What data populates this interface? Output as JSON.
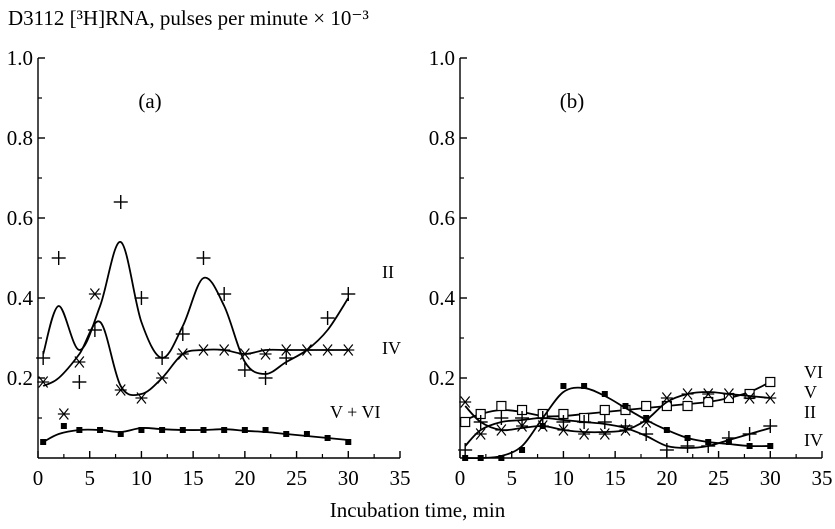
{
  "figure": {
    "ylabel": "D3112 [³H]RNA, pulses per minute × 10⁻³",
    "xlabel": "Incubation time, min"
  },
  "chart_data": [
    {
      "type": "line",
      "panel_label": "(a)",
      "xlim": [
        0,
        35
      ],
      "ylim": [
        0,
        1.0
      ],
      "xticks": [
        "0",
        "5",
        "10",
        "15",
        "20",
        "25",
        "30",
        "35"
      ],
      "yticks": [
        "0.2",
        "0.4",
        "0.6",
        "0.8",
        "1.0"
      ],
      "xlabel": "Incubation time, min",
      "ylabel": "D3112 [³H]RNA, pulses per minute × 10⁻³",
      "series": [
        {
          "name": "II",
          "marker": "plus",
          "points": [
            [
              0.5,
              0.25
            ],
            [
              2,
              0.5
            ],
            [
              4,
              0.19
            ],
            [
              5.5,
              0.32
            ],
            [
              8,
              0.64
            ],
            [
              10,
              0.4
            ],
            [
              12,
              0.25
            ],
            [
              14,
              0.31
            ],
            [
              16,
              0.5
            ],
            [
              18,
              0.41
            ],
            [
              20,
              0.22
            ],
            [
              22,
              0.2
            ],
            [
              24,
              0.25
            ],
            [
              28,
              0.35
            ],
            [
              30,
              0.41
            ]
          ],
          "curve": [
            [
              0.5,
              0.26
            ],
            [
              2,
              0.38
            ],
            [
              4,
              0.27
            ],
            [
              6,
              0.38
            ],
            [
              8,
              0.54
            ],
            [
              10,
              0.34
            ],
            [
              12,
              0.25
            ],
            [
              14,
              0.33
            ],
            [
              16,
              0.45
            ],
            [
              18,
              0.38
            ],
            [
              20,
              0.24
            ],
            [
              22,
              0.21
            ],
            [
              24,
              0.24
            ],
            [
              26,
              0.27
            ],
            [
              28,
              0.32
            ],
            [
              30,
              0.4
            ]
          ]
        },
        {
          "name": "IV",
          "marker": "asterisk",
          "points": [
            [
              0.5,
              0.19
            ],
            [
              2.5,
              0.11
            ],
            [
              4,
              0.24
            ],
            [
              5.5,
              0.41
            ],
            [
              8,
              0.17
            ],
            [
              10,
              0.15
            ],
            [
              12,
              0.2
            ],
            [
              14,
              0.26
            ],
            [
              16,
              0.27
            ],
            [
              18,
              0.27
            ],
            [
              20,
              0.26
            ],
            [
              22,
              0.26
            ],
            [
              24,
              0.27
            ],
            [
              26,
              0.27
            ],
            [
              28,
              0.27
            ],
            [
              30,
              0.27
            ]
          ],
          "curve": [
            [
              0.5,
              0.18
            ],
            [
              2,
              0.2
            ],
            [
              4,
              0.26
            ],
            [
              6,
              0.34
            ],
            [
              8,
              0.18
            ],
            [
              10,
              0.16
            ],
            [
              12,
              0.2
            ],
            [
              14,
              0.26
            ],
            [
              16,
              0.27
            ],
            [
              18,
              0.27
            ],
            [
              20,
              0.26
            ],
            [
              22,
              0.27
            ],
            [
              24,
              0.27
            ],
            [
              26,
              0.27
            ],
            [
              28,
              0.27
            ],
            [
              30,
              0.27
            ]
          ]
        },
        {
          "name": "V + VI",
          "marker": "square-filled",
          "points": [
            [
              0.5,
              0.04
            ],
            [
              2.5,
              0.08
            ],
            [
              4,
              0.07
            ],
            [
              6,
              0.07
            ],
            [
              8,
              0.06
            ],
            [
              10,
              0.07
            ],
            [
              12,
              0.07
            ],
            [
              14,
              0.07
            ],
            [
              16,
              0.07
            ],
            [
              18,
              0.07
            ],
            [
              20,
              0.07
            ],
            [
              22,
              0.07
            ],
            [
              24,
              0.06
            ],
            [
              26,
              0.06
            ],
            [
              28,
              0.05
            ],
            [
              30,
              0.04
            ]
          ],
          "curve": [
            [
              0.5,
              0.04
            ],
            [
              2,
              0.06
            ],
            [
              4,
              0.07
            ],
            [
              6,
              0.07
            ],
            [
              8,
              0.065
            ],
            [
              10,
              0.075
            ],
            [
              12,
              0.072
            ],
            [
              14,
              0.07
            ],
            [
              16,
              0.07
            ],
            [
              18,
              0.072
            ],
            [
              20,
              0.068
            ],
            [
              22,
              0.065
            ],
            [
              24,
              0.06
            ],
            [
              26,
              0.055
            ],
            [
              28,
              0.05
            ],
            [
              30,
              0.045
            ]
          ]
        }
      ]
    },
    {
      "type": "line",
      "panel_label": "(b)",
      "xlim": [
        0,
        35
      ],
      "ylim": [
        0,
        1.0
      ],
      "xticks": [
        "0",
        "5",
        "10",
        "15",
        "20",
        "25",
        "30",
        "35"
      ],
      "yticks": [
        "0.2",
        "0.4",
        "0.6",
        "0.8",
        "1.0"
      ],
      "xlabel": "Incubation time, min",
      "ylabel": "D3112 [³H]RNA, pulses per minute × 10⁻³",
      "series": [
        {
          "name": "VI",
          "marker": "square-open",
          "points": [
            [
              0.5,
              0.09
            ],
            [
              2,
              0.11
            ],
            [
              4,
              0.13
            ],
            [
              6,
              0.12
            ],
            [
              8,
              0.11
            ],
            [
              10,
              0.11
            ],
            [
              12,
              0.1
            ],
            [
              14,
              0.12
            ],
            [
              16,
              0.12
            ],
            [
              18,
              0.13
            ],
            [
              20,
              0.13
            ],
            [
              22,
              0.13
            ],
            [
              24,
              0.14
            ],
            [
              26,
              0.15
            ],
            [
              28,
              0.16
            ],
            [
              30,
              0.19
            ]
          ],
          "curve": [
            [
              0.5,
              0.095
            ],
            [
              2,
              0.11
            ],
            [
              4,
              0.12
            ],
            [
              6,
              0.115
            ],
            [
              8,
              0.105
            ],
            [
              10,
              0.105
            ],
            [
              12,
              0.11
            ],
            [
              14,
              0.115
            ],
            [
              16,
              0.12
            ],
            [
              18,
              0.125
            ],
            [
              20,
              0.13
            ],
            [
              22,
              0.135
            ],
            [
              24,
              0.14
            ],
            [
              26,
              0.15
            ],
            [
              28,
              0.165
            ],
            [
              30,
              0.19
            ]
          ]
        },
        {
          "name": "V",
          "marker": "asterisk",
          "points": [
            [
              0.5,
              0.14
            ],
            [
              2,
              0.06
            ],
            [
              4,
              0.07
            ],
            [
              6,
              0.08
            ],
            [
              8,
              0.08
            ],
            [
              10,
              0.07
            ],
            [
              12,
              0.06
            ],
            [
              14,
              0.06
            ],
            [
              16,
              0.07
            ],
            [
              18,
              0.09
            ],
            [
              20,
              0.15
            ],
            [
              22,
              0.16
            ],
            [
              24,
              0.16
            ],
            [
              26,
              0.16
            ],
            [
              28,
              0.15
            ],
            [
              30,
              0.15
            ]
          ],
          "curve": [
            [
              0.5,
              0.13
            ],
            [
              2,
              0.09
            ],
            [
              4,
              0.07
            ],
            [
              6,
              0.075
            ],
            [
              8,
              0.08
            ],
            [
              10,
              0.07
            ],
            [
              12,
              0.065
            ],
            [
              14,
              0.065
            ],
            [
              16,
              0.07
            ],
            [
              18,
              0.095
            ],
            [
              20,
              0.14
            ],
            [
              22,
              0.16
            ],
            [
              24,
              0.165
            ],
            [
              26,
              0.16
            ],
            [
              28,
              0.155
            ],
            [
              30,
              0.15
            ]
          ]
        },
        {
          "name": "II",
          "marker": "plus",
          "points": [
            [
              0.5,
              0.02
            ],
            [
              2,
              0.09
            ],
            [
              4,
              0.1
            ],
            [
              6,
              0.1
            ],
            [
              8,
              0.1
            ],
            [
              10,
              0.09
            ],
            [
              12,
              0.09
            ],
            [
              14,
              0.09
            ],
            [
              16,
              0.08
            ],
            [
              18,
              0.06
            ],
            [
              20,
              0.02
            ],
            [
              22,
              0.03
            ],
            [
              24,
              0.03
            ],
            [
              26,
              0.05
            ],
            [
              28,
              0.06
            ],
            [
              30,
              0.08
            ]
          ],
          "curve": [
            [
              0.5,
              0.03
            ],
            [
              2,
              0.07
            ],
            [
              4,
              0.09
            ],
            [
              6,
              0.095
            ],
            [
              8,
              0.1
            ],
            [
              10,
              0.095
            ],
            [
              12,
              0.09
            ],
            [
              14,
              0.085
            ],
            [
              16,
              0.075
            ],
            [
              18,
              0.055
            ],
            [
              20,
              0.03
            ],
            [
              22,
              0.025
            ],
            [
              24,
              0.03
            ],
            [
              26,
              0.045
            ],
            [
              28,
              0.06
            ],
            [
              30,
              0.075
            ]
          ]
        },
        {
          "name": "IV",
          "marker": "square-filled",
          "points": [
            [
              0.5,
              0.0
            ],
            [
              2,
              0.0
            ],
            [
              4,
              0.0
            ],
            [
              6,
              0.02
            ],
            [
              8,
              0.08
            ],
            [
              10,
              0.18
            ],
            [
              12,
              0.18
            ],
            [
              14,
              0.16
            ],
            [
              16,
              0.13
            ],
            [
              18,
              0.1
            ],
            [
              20,
              0.07
            ],
            [
              22,
              0.05
            ],
            [
              24,
              0.04
            ],
            [
              26,
              0.04
            ],
            [
              28,
              0.03
            ],
            [
              30,
              0.03
            ]
          ],
          "curve": [
            [
              0.5,
              0.0
            ],
            [
              2,
              0.0
            ],
            [
              4,
              0.005
            ],
            [
              6,
              0.03
            ],
            [
              8,
              0.1
            ],
            [
              10,
              0.165
            ],
            [
              12,
              0.175
            ],
            [
              14,
              0.155
            ],
            [
              16,
              0.125
            ],
            [
              18,
              0.095
            ],
            [
              20,
              0.07
            ],
            [
              22,
              0.05
            ],
            [
              24,
              0.04
            ],
            [
              26,
              0.035
            ],
            [
              28,
              0.03
            ],
            [
              30,
              0.03
            ]
          ]
        }
      ]
    }
  ]
}
